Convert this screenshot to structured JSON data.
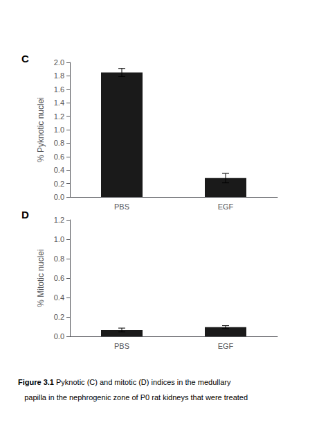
{
  "chart_data": [
    {
      "type": "bar",
      "title": "C",
      "categories": [
        "PBS",
        "EGF"
      ],
      "values": [
        1.85,
        0.28
      ],
      "errors": [
        0.06,
        0.07
      ],
      "ylabel": "% Pyknotic nuclei",
      "color": "#1a1a1a",
      "ylim": [
        0,
        2.0
      ],
      "yticks": [
        {
          "value": 0,
          "label": "0.0"
        },
        0.2,
        0.4,
        0.6,
        0.8,
        {
          "value": 1,
          "label": "1.0"
        },
        1.2,
        1.4,
        1.6,
        1.8,
        {
          "value": 2,
          "label": "2.0"
        }
      ],
      "grid": false
    },
    {
      "type": "bar",
      "title": "D",
      "categories": [
        "PBS",
        "EGF"
      ],
      "values": [
        0.065,
        0.095
      ],
      "errors": [
        0.02,
        0.015
      ],
      "ylabel": "% Mitotic nuclei",
      "color": "#1a1a1a",
      "ylim": [
        0,
        1.2
      ],
      "yticks": [
        {
          "value": 0,
          "label": "0.0"
        },
        0.2,
        0.4,
        0.6,
        0.8,
        {
          "value": 1,
          "label": "1.0"
        },
        1.2
      ],
      "grid": false,
      "annotations": [
        "Figure 3.1",
        " Pyknotic (C) and mitotic (D) indices in the medullary",
        "   papilla in the nephrogenic zone of P0 rat kidneys that were treated"
      ]
    }
  ]
}
